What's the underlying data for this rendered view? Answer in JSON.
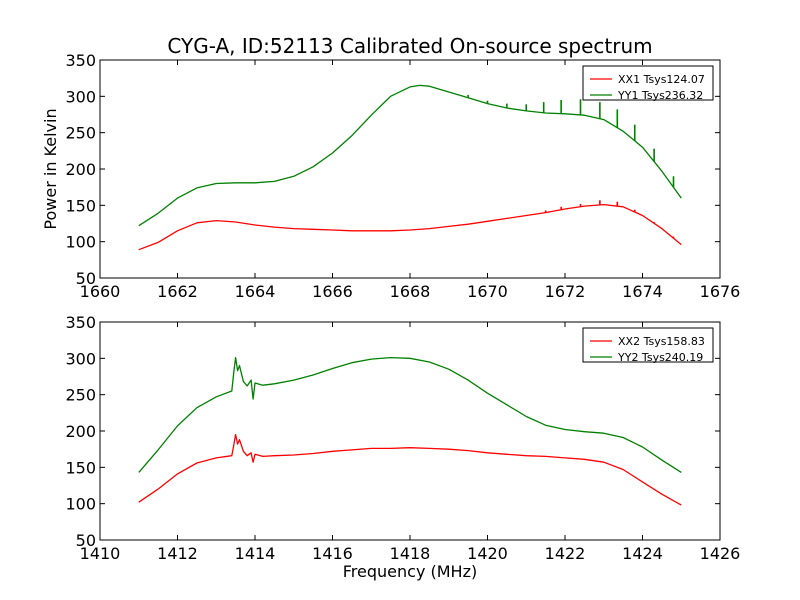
{
  "figure": {
    "title": "CYG-A, ID:52113 Calibrated On-source spectrum"
  },
  "chart_data": [
    {
      "type": "line",
      "ylabel": "Power in Kelvin",
      "xlabel": "",
      "xlim": [
        1660,
        1676
      ],
      "ylim": [
        50,
        350
      ],
      "xticks": [
        1660,
        1662,
        1664,
        1666,
        1668,
        1670,
        1672,
        1674,
        1676
      ],
      "yticks": [
        50,
        100,
        150,
        200,
        250,
        300,
        350
      ],
      "legend_position": "top-right",
      "series": [
        {
          "name": "XX1 Tsys124.07",
          "color": "#ff0000",
          "x": [
            1661.0,
            1661.5,
            1662.0,
            1662.5,
            1663.0,
            1663.5,
            1664.0,
            1664.5,
            1665.0,
            1665.5,
            1666.0,
            1666.5,
            1667.0,
            1667.5,
            1668.0,
            1668.5,
            1669.0,
            1669.5,
            1670.0,
            1670.5,
            1671.0,
            1671.5,
            1672.0,
            1672.5,
            1673.0,
            1673.5,
            1674.0,
            1674.5,
            1675.0
          ],
          "y": [
            89,
            99,
            115,
            126,
            129,
            127,
            123,
            120,
            118,
            117,
            116,
            115,
            115,
            115,
            116,
            118,
            121,
            124,
            128,
            132,
            136,
            140,
            145,
            149,
            151,
            148,
            136,
            118,
            96
          ],
          "spikes": [
            {
              "x": 1671.5,
              "top": 143
            },
            {
              "x": 1671.9,
              "top": 148
            },
            {
              "x": 1672.4,
              "top": 152
            },
            {
              "x": 1672.9,
              "top": 157
            },
            {
              "x": 1673.35,
              "top": 155
            },
            {
              "x": 1673.8,
              "top": 144
            },
            {
              "x": 1674.3,
              "top": 127
            },
            {
              "x": 1674.8,
              "top": 107
            }
          ]
        },
        {
          "name": "YY1 Tsys236.32",
          "color": "#008000",
          "x": [
            1661.0,
            1661.5,
            1662.0,
            1662.5,
            1663.0,
            1663.5,
            1664.0,
            1664.5,
            1665.0,
            1665.5,
            1666.0,
            1666.5,
            1667.0,
            1667.5,
            1668.0,
            1668.25,
            1668.5,
            1669.0,
            1669.5,
            1670.0,
            1670.5,
            1671.0,
            1671.5,
            1672.0,
            1672.5,
            1673.0,
            1673.5,
            1674.0,
            1674.5,
            1675.0
          ],
          "y": [
            122,
            139,
            160,
            174,
            180,
            181,
            181,
            183,
            190,
            203,
            222,
            246,
            274,
            300,
            313,
            315,
            314,
            306,
            298,
            290,
            284,
            280,
            277,
            276,
            274,
            268,
            252,
            230,
            197,
            160
          ],
          "spikes": [
            {
              "x": 1669.5,
              "top": 302
            },
            {
              "x": 1670.0,
              "top": 294
            },
            {
              "x": 1670.5,
              "top": 290
            },
            {
              "x": 1671.0,
              "top": 289
            },
            {
              "x": 1671.45,
              "top": 292
            },
            {
              "x": 1671.9,
              "top": 295
            },
            {
              "x": 1672.4,
              "top": 296
            },
            {
              "x": 1672.9,
              "top": 292
            },
            {
              "x": 1673.35,
              "top": 282
            },
            {
              "x": 1673.8,
              "top": 261
            },
            {
              "x": 1674.3,
              "top": 228
            },
            {
              "x": 1674.8,
              "top": 190
            }
          ]
        }
      ]
    },
    {
      "type": "line",
      "ylabel": "",
      "xlabel": "Frequency (MHz)",
      "xlim": [
        1410,
        1426
      ],
      "ylim": [
        50,
        350
      ],
      "xticks": [
        1410,
        1412,
        1414,
        1416,
        1418,
        1420,
        1422,
        1424,
        1426
      ],
      "yticks": [
        50,
        100,
        150,
        200,
        250,
        300,
        350
      ],
      "legend_position": "top-right",
      "series": [
        {
          "name": "XX2 Tsys158.83",
          "color": "#ff0000",
          "x": [
            1411.0,
            1411.5,
            1412.0,
            1412.5,
            1413.0,
            1413.4,
            1413.45,
            1413.5,
            1413.55,
            1413.6,
            1413.7,
            1413.8,
            1413.9,
            1413.95,
            1414.0,
            1414.2,
            1414.5,
            1415.0,
            1415.5,
            1416.0,
            1416.5,
            1417.0,
            1417.5,
            1418.0,
            1418.5,
            1419.0,
            1419.5,
            1420.0,
            1420.5,
            1421.0,
            1421.5,
            1422.0,
            1422.5,
            1423.0,
            1423.5,
            1424.0,
            1424.5,
            1425.0
          ],
          "y": [
            102,
            120,
            141,
            156,
            163,
            166,
            180,
            195,
            182,
            188,
            172,
            166,
            170,
            157,
            168,
            165,
            166,
            167,
            169,
            172,
            174,
            176,
            176,
            177,
            176,
            175,
            173,
            170,
            168,
            166,
            165,
            163,
            161,
            157,
            147,
            130,
            113,
            98
          ]
        },
        {
          "name": "YY2 Tsys240.19",
          "color": "#008000",
          "x": [
            1411.0,
            1411.5,
            1412.0,
            1412.5,
            1413.0,
            1413.4,
            1413.45,
            1413.5,
            1413.55,
            1413.6,
            1413.7,
            1413.8,
            1413.9,
            1413.95,
            1414.0,
            1414.2,
            1414.5,
            1415.0,
            1415.5,
            1416.0,
            1416.5,
            1417.0,
            1417.5,
            1418.0,
            1418.5,
            1419.0,
            1419.5,
            1420.0,
            1420.5,
            1421.0,
            1421.5,
            1422.0,
            1422.5,
            1423.0,
            1423.5,
            1424.0,
            1424.5,
            1425.0
          ],
          "y": [
            143,
            174,
            207,
            232,
            247,
            255,
            280,
            301,
            283,
            290,
            268,
            262,
            270,
            244,
            266,
            263,
            265,
            270,
            277,
            286,
            294,
            299,
            301,
            300,
            295,
            285,
            270,
            252,
            236,
            220,
            208,
            202,
            199,
            197,
            191,
            178,
            160,
            143
          ]
        }
      ]
    }
  ]
}
